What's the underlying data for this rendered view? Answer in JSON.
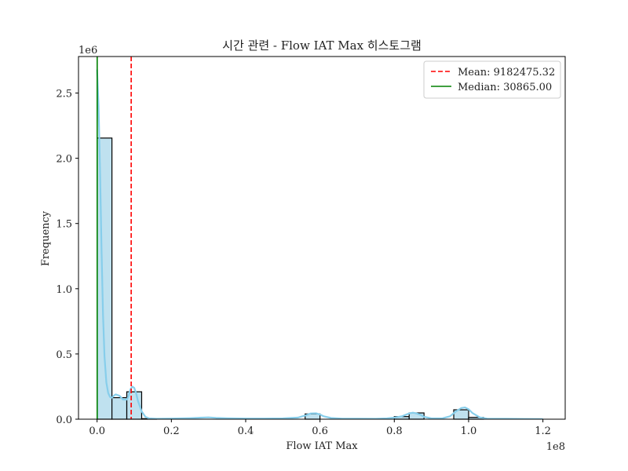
{
  "chart_data": {
    "type": "bar",
    "title": "시간 관련 - Flow IAT Max 히스토그램",
    "xlabel": "Flow IAT Max",
    "ylabel": "Frequency",
    "x_offset_label": "1e8",
    "y_offset_label": "1e6",
    "x_scale_factor": 100000000,
    "y_scale_factor": 1000000,
    "xlim": [
      -5000000,
      126000000
    ],
    "ylim": [
      0,
      2780000
    ],
    "x_ticks": [
      0,
      20000000,
      40000000,
      60000000,
      80000000,
      100000000,
      120000000
    ],
    "x_tick_labels": [
      "0.0",
      "0.2",
      "0.4",
      "0.6",
      "0.8",
      "1.0",
      "1.2"
    ],
    "y_ticks": [
      0,
      500000,
      1000000,
      1500000,
      2000000,
      2500000
    ],
    "y_tick_labels": [
      "0.0",
      "0.5",
      "1.0",
      "1.5",
      "2.0",
      "2.5"
    ],
    "bin_width": 4000000,
    "bins": [
      {
        "x0": 0,
        "count": 2155000
      },
      {
        "x0": 4000000,
        "count": 165000
      },
      {
        "x0": 8000000,
        "count": 210000
      },
      {
        "x0": 12000000,
        "count": 4000
      },
      {
        "x0": 56000000,
        "count": 40000
      },
      {
        "x0": 80000000,
        "count": 20000
      },
      {
        "x0": 84000000,
        "count": 48000
      },
      {
        "x0": 96000000,
        "count": 72000
      },
      {
        "x0": 100000000,
        "count": 14000
      }
    ],
    "kde": {
      "x": [
        0,
        400000,
        800000,
        1200000,
        1600000,
        2000000,
        2500000,
        3000000,
        3500000,
        4000000,
        4500000,
        5000000,
        6000000,
        7000000,
        8000000,
        8500000,
        9000000,
        9500000,
        10000000,
        10500000,
        11000000,
        12000000,
        13000000,
        14000000,
        16000000,
        20000000,
        25000000,
        30000000,
        32000000,
        35000000,
        40000000,
        45000000,
        50000000,
        54000000,
        56000000,
        57500000,
        59000000,
        60000000,
        61000000,
        63000000,
        66000000,
        70000000,
        75000000,
        78000000,
        80000000,
        82000000,
        84000000,
        85000000,
        86000000,
        87000000,
        88000000,
        90000000,
        93000000,
        95000000,
        96500000,
        98000000,
        99000000,
        100000000,
        101000000,
        103000000,
        105000000,
        110000000,
        115000000,
        120000000
      ],
      "y": [
        2680000,
        2400000,
        1900000,
        1300000,
        800000,
        480000,
        280000,
        200000,
        170000,
        165000,
        180000,
        190000,
        180000,
        150000,
        150000,
        180000,
        230000,
        250000,
        240000,
        200000,
        140000,
        60000,
        18000,
        6000,
        3000,
        5000,
        8000,
        14000,
        10000,
        7000,
        5000,
        5000,
        6000,
        12000,
        28000,
        44000,
        45000,
        36000,
        22000,
        9000,
        4000,
        4000,
        3000,
        6000,
        12000,
        22000,
        44000,
        50000,
        44000,
        34000,
        18000,
        6000,
        7000,
        22000,
        58000,
        85000,
        90000,
        76000,
        48000,
        14000,
        4000,
        3000,
        2000,
        1000
      ]
    },
    "mean": 9182475.32,
    "median": 30865.0,
    "legend": {
      "position": "top-right",
      "entries": [
        {
          "label": "Mean: 9182475.32",
          "color": "#ff0000",
          "style": "dashed"
        },
        {
          "label": "Median: 30865.00",
          "color": "#008000",
          "style": "solid"
        }
      ]
    },
    "colors": {
      "bar_fill": "#bfe1ef",
      "bar_edge": "#000000",
      "kde": "#87ceeb",
      "mean_line": "#ff0000",
      "median_line": "#008000"
    },
    "grid": false
  }
}
